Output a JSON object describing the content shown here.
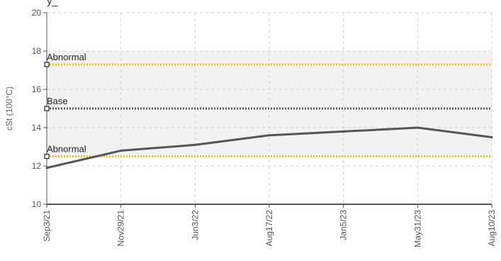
{
  "colors": {
    "series": "#555555",
    "abnormal": "#f5c400",
    "base": "#555555",
    "band": "#f2f2f2",
    "grid": "#d0d0d0",
    "axis": "#555555"
  },
  "chart_data": {
    "type": "line",
    "ylabel": "cSt (100°C)",
    "ylim": [
      10,
      20
    ],
    "yticks": [
      10,
      12,
      14,
      16,
      18,
      20
    ],
    "x": [
      "Sep3/21",
      "Nov29/21",
      "Jun3/22",
      "Aug17/22",
      "Jan5/23",
      "May31/23",
      "Aug10/23"
    ],
    "grid": true,
    "band": [
      12.5,
      18
    ],
    "series": [
      {
        "values": [
          11.9,
          12.8,
          13.1,
          13.6,
          13.8,
          14.0,
          13.5
        ]
      }
    ],
    "reference_lines": [
      {
        "label": "Abnormal",
        "value": 17.3,
        "color": "abnormal"
      },
      {
        "label": "Base",
        "value": 15.0,
        "color": "base"
      },
      {
        "label": "Abnormal",
        "value": 12.5,
        "color": "abnormal"
      }
    ]
  }
}
